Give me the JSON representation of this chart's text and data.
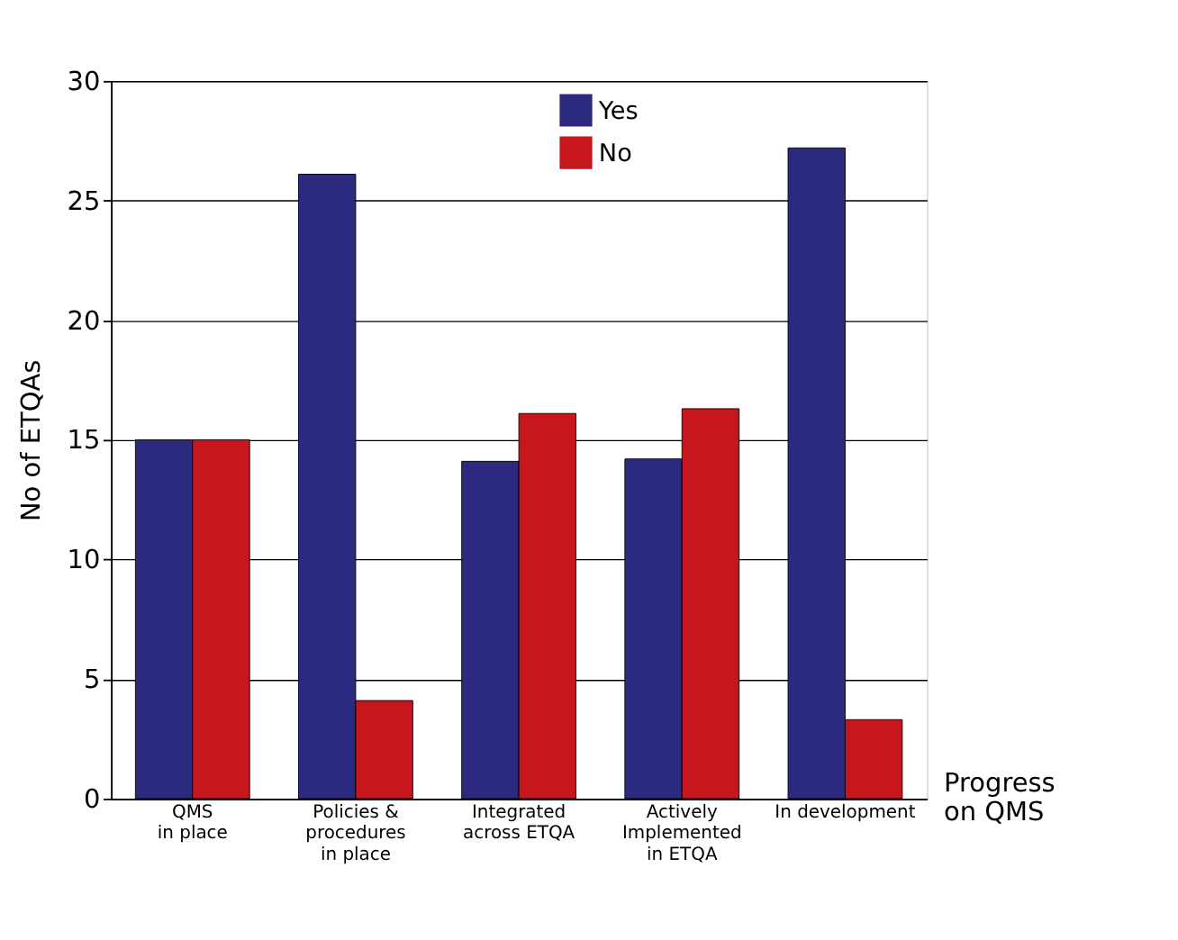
{
  "chart_data": {
    "type": "bar",
    "xlabel": "Progress\non QMS",
    "ylabel": "No of ETQAs",
    "categories": [
      "QMS\nin place",
      "Policies &\nprocedures\nin place",
      "Integrated\nacross ETQA",
      "Actively\nImplemented\nin ETQA",
      "In development"
    ],
    "series": [
      {
        "name": "Yes",
        "color": "#2b2a7e",
        "values": [
          15,
          26.1,
          14.1,
          14.2,
          27.2
        ]
      },
      {
        "name": "No",
        "color": "#c8161e",
        "values": [
          15,
          4.1,
          16.1,
          16.3,
          3.3
        ]
      }
    ],
    "ylim": [
      0,
      30
    ],
    "yticks": [
      0,
      5,
      10,
      15,
      20,
      25,
      30
    ],
    "grid": "y",
    "legend": "top"
  }
}
